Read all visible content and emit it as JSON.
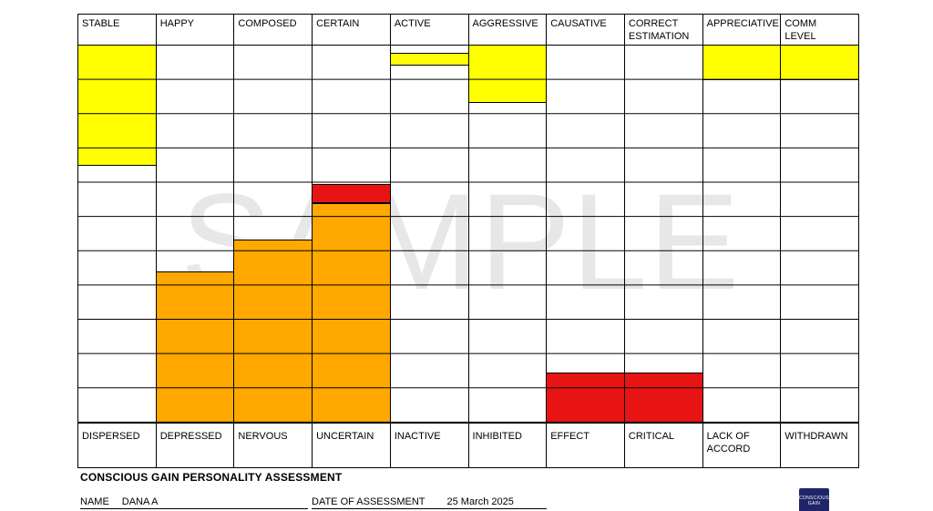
{
  "watermark": "SAMPLE",
  "title": "CONSCIOUS GAIN PERSONALITY ASSESSMENT",
  "fields": {
    "name_label": "NAME",
    "name_value": "DANA A",
    "date_label": "DATE OF ASSESSMENT",
    "date_value": "25 March 2025"
  },
  "logo": {
    "line1": "CONSCIOUS",
    "line2": "GAIN"
  },
  "chart_data": {
    "type": "bar",
    "title": "CONSCIOUS GAIN PERSONALITY ASSESSMENT",
    "row_count": 11,
    "grid": true,
    "units": "rows from top of grid (0 = top edge, 11 = bottom edge)",
    "palette": {
      "yellow": "#FFFF00",
      "orange": "#FFA800",
      "red": "#E81414"
    },
    "columns": [
      {
        "top_label": "STABLE",
        "bottom_label": "DISPERSED",
        "bars": [
          {
            "color": "yellow",
            "from_row": 0,
            "to_row": 3.5,
            "anchor": "top"
          }
        ]
      },
      {
        "top_label": "HAPPY",
        "bottom_label": "DEPRESSED",
        "bars": [
          {
            "color": "orange",
            "from_row": 6.6,
            "to_row": 11,
            "anchor": "bottom"
          }
        ]
      },
      {
        "top_label": "COMPOSED",
        "bottom_label": "NERVOUS",
        "bars": [
          {
            "color": "orange",
            "from_row": 5.65,
            "to_row": 11,
            "anchor": "bottom"
          }
        ]
      },
      {
        "top_label": "CERTAIN",
        "bottom_label": "UNCERTAIN",
        "bars": [
          {
            "color": "red",
            "from_row": 4.05,
            "to_row": 4.6,
            "anchor": "float"
          },
          {
            "color": "orange",
            "from_row": 4.6,
            "to_row": 11,
            "anchor": "bottom"
          }
        ]
      },
      {
        "top_label": "ACTIVE",
        "bottom_label": "INACTIVE",
        "bars": [
          {
            "color": "yellow",
            "from_row": 0.2,
            "to_row": 0.58,
            "anchor": "float"
          }
        ]
      },
      {
        "top_label": "AGGRESSIVE",
        "bottom_label": "INHIBITED",
        "bars": [
          {
            "color": "yellow",
            "from_row": 0,
            "to_row": 1.67,
            "anchor": "top"
          }
        ]
      },
      {
        "top_label": "CAUSATIVE",
        "bottom_label": "EFFECT",
        "bars": [
          {
            "color": "red",
            "from_row": 9.55,
            "to_row": 11,
            "anchor": "bottom"
          }
        ]
      },
      {
        "top_label": "CORRECT\nESTIMATION",
        "bottom_label": "CRITICAL",
        "bars": [
          {
            "color": "red",
            "from_row": 9.55,
            "to_row": 11,
            "anchor": "bottom"
          }
        ]
      },
      {
        "top_label": "APPRECIATIVE",
        "bottom_label": "LACK OF\nACCORD",
        "bars": [
          {
            "color": "yellow",
            "from_row": 0,
            "to_row": 1.0,
            "anchor": "top"
          }
        ]
      },
      {
        "top_label": "COMM\nLEVEL",
        "bottom_label": "WITHDRAWN",
        "bars": [
          {
            "color": "yellow",
            "from_row": 0,
            "to_row": 1.0,
            "anchor": "top"
          }
        ]
      }
    ]
  }
}
